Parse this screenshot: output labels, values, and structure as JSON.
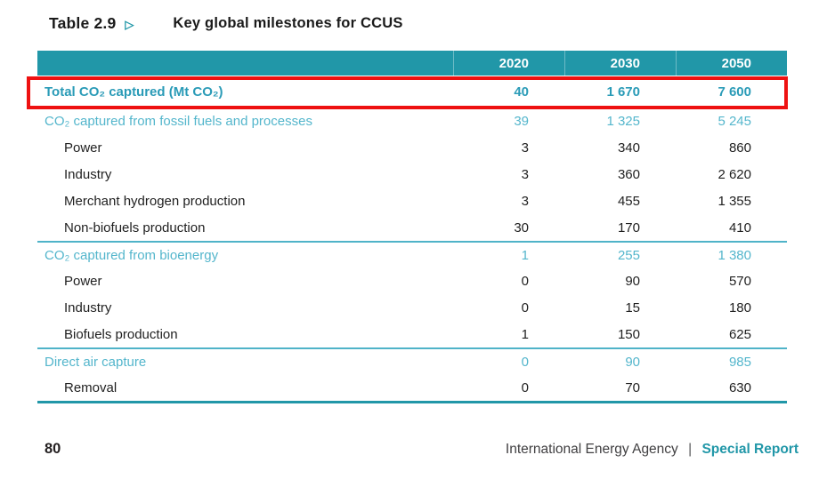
{
  "title": {
    "table_label": "Table 2.9",
    "arrow_icon": "▷",
    "text": "Key global milestones for CCUS"
  },
  "table": {
    "columns": [
      "2020",
      "2030",
      "2050"
    ],
    "rows": [
      {
        "type": "total",
        "highlighted": true,
        "label": "Total CO₂ captured (Mt CO₂)",
        "values": [
          "40",
          "1 670",
          "7 600"
        ]
      },
      {
        "type": "section",
        "first": true,
        "label": "CO₂ captured from fossil fuels and processes",
        "values": [
          "39",
          "1 325",
          "5 245"
        ]
      },
      {
        "type": "sub",
        "label": "Power",
        "values": [
          "3",
          "340",
          "860"
        ]
      },
      {
        "type": "sub",
        "label": "Industry",
        "values": [
          "3",
          "360",
          "2 620"
        ]
      },
      {
        "type": "sub",
        "label": "Merchant hydrogen production",
        "values": [
          "3",
          "455",
          "1 355"
        ]
      },
      {
        "type": "sub",
        "label": "Non-biofuels production",
        "values": [
          "30",
          "170",
          "410"
        ]
      },
      {
        "type": "section",
        "label": "CO₂ captured from bioenergy",
        "values": [
          "1",
          "255",
          "1 380"
        ]
      },
      {
        "type": "sub",
        "label": "Power",
        "values": [
          "0",
          "90",
          "570"
        ]
      },
      {
        "type": "sub",
        "label": "Industry",
        "values": [
          "0",
          "15",
          "180"
        ]
      },
      {
        "type": "sub",
        "label": "Biofuels production",
        "values": [
          "1",
          "150",
          "625"
        ]
      },
      {
        "type": "section",
        "label": "Direct air capture",
        "values": [
          "0",
          "90",
          "985"
        ]
      },
      {
        "type": "sub",
        "label": "Removal",
        "values": [
          "0",
          "70",
          "630"
        ]
      }
    ]
  },
  "footer": {
    "page_number": "80",
    "publisher": "International Energy Agency",
    "separator": "|",
    "report_type": "Special Report"
  },
  "colors": {
    "header_teal": "#2197A8",
    "section_teal": "#54B6CC",
    "total_teal": "#2A9BB7",
    "highlight_red": "#EE1111",
    "footer_gray": "#414042",
    "text_black": "#1F1F1F"
  }
}
